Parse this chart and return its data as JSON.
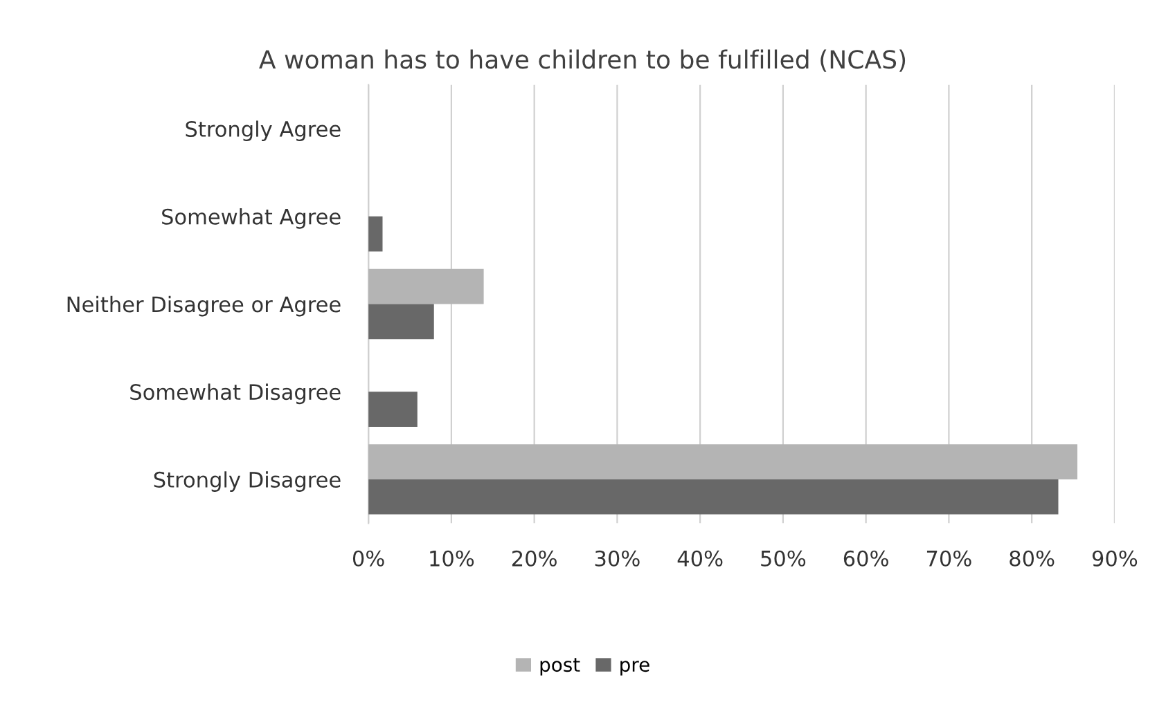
{
  "chart_data": {
    "type": "bar",
    "orientation": "horizontal",
    "title": "A woman has to have children to be fulfilled (NCAS)",
    "categories": [
      "Strongly Agree",
      "Somewhat Agree",
      "Neither Disagree or Agree",
      "Somewhat Disagree",
      "Strongly Disagree"
    ],
    "series": [
      {
        "name": "post",
        "color": "#b4b4b4",
        "values": [
          0,
          0,
          13.9,
          0,
          85.5
        ]
      },
      {
        "name": "pre",
        "color": "#686868",
        "values": [
          0,
          1.7,
          7.9,
          5.9,
          83.2
        ]
      }
    ],
    "xlim": [
      0,
      90
    ],
    "xticks": [
      {
        "value": 0,
        "label": "0%"
      },
      {
        "value": 10,
        "label": "10%"
      },
      {
        "value": 20,
        "label": "20%"
      },
      {
        "value": 30,
        "label": "30%"
      },
      {
        "value": 40,
        "label": "40%"
      },
      {
        "value": 50,
        "label": "50%"
      },
      {
        "value": 60,
        "label": "60%"
      },
      {
        "value": 70,
        "label": "70%"
      },
      {
        "value": 80,
        "label": "80%"
      },
      {
        "value": 90,
        "label": "90%"
      }
    ],
    "grid": "x",
    "legend": "bottom"
  }
}
